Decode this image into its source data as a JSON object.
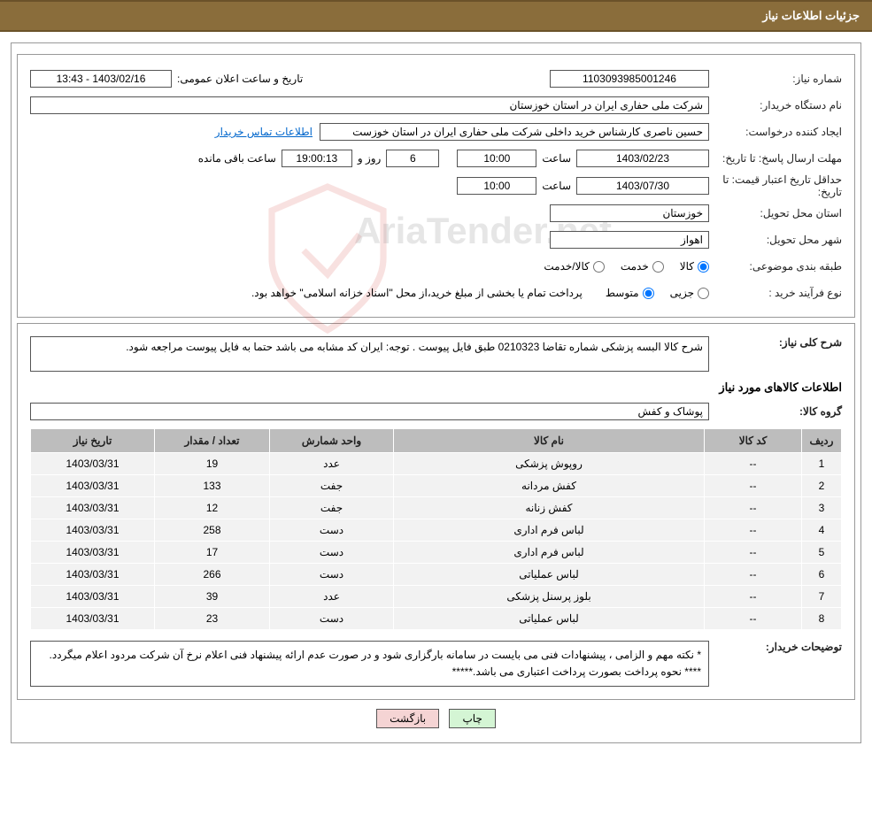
{
  "header": {
    "title": "جزئیات اطلاعات نیاز"
  },
  "need": {
    "number_label": "شماره نیاز:",
    "number": "1103093985001246",
    "announce_label": "تاریخ و ساعت اعلان عمومی:",
    "announce_datetime": "1403/02/16 - 13:43",
    "buyer_org_label": "نام دستگاه خریدار:",
    "buyer_org": "شرکت ملی حفاری ایران در استان خوزستان",
    "requester_label": "ایجاد کننده درخواست:",
    "requester": "حسین ناصری کارشناس خرید داخلی شرکت ملی حفاری ایران در استان خوزست",
    "buyer_contact_link": "اطلاعات تماس خریدار",
    "deadline_label": "مهلت ارسال پاسخ:",
    "deadline_to_label": "تا تاریخ:",
    "deadline_date": "1403/02/23",
    "time_label": "ساعت",
    "deadline_time": "10:00",
    "days_remaining": "6",
    "days_word": "روز و",
    "hms_remaining": "19:00:13",
    "remaining_suffix": "ساعت باقی مانده",
    "price_validity_label": "حداقل تاریخ اعتبار قیمت:",
    "price_validity_to_label": "تا تاریخ:",
    "price_validity_date": "1403/07/30",
    "price_validity_time": "10:00",
    "province_label": "استان محل تحویل:",
    "province": "خوزستان",
    "city_label": "شهر محل تحویل:",
    "city": "اهواز",
    "category_label": "طبقه بندی موضوعی:",
    "cat_goods": "کالا",
    "cat_service": "خدمت",
    "cat_goods_service": "کالا/خدمت",
    "process_label": "نوع فرآیند خرید :",
    "proc_partial": "جزیی",
    "proc_medium": "متوسط",
    "process_note": "پرداخت تمام یا بخشی از مبلغ خرید،از محل \"اسناد خزانه اسلامی\" خواهد بود."
  },
  "summary": {
    "need_desc_label": "شرح کلی نیاز:",
    "need_desc": "شرح کالا البسه پزشکی  شماره تقاضا 0210323  طبق فایل پیوست . توجه: ایران کد مشابه می باشد حتما به فایل پیوست مراجعه شود.",
    "items_heading": "اطلاعات کالاهای مورد نیاز",
    "group_label": "گروه کالا:",
    "group": "پوشاک و کفش"
  },
  "table": {
    "headers": {
      "row": "ردیف",
      "code": "کد کالا",
      "name": "نام کالا",
      "unit": "واحد شمارش",
      "qty": "تعداد / مقدار",
      "date": "تاریخ نیاز"
    },
    "rows": [
      {
        "n": "1",
        "code": "--",
        "name": "روپوش پزشکی",
        "unit": "عدد",
        "qty": "19",
        "date": "1403/03/31"
      },
      {
        "n": "2",
        "code": "--",
        "name": "کفش مردانه",
        "unit": "جفت",
        "qty": "133",
        "date": "1403/03/31"
      },
      {
        "n": "3",
        "code": "--",
        "name": "کفش زنانه",
        "unit": "جفت",
        "qty": "12",
        "date": "1403/03/31"
      },
      {
        "n": "4",
        "code": "--",
        "name": "لباس فرم اداری",
        "unit": "دست",
        "qty": "258",
        "date": "1403/03/31"
      },
      {
        "n": "5",
        "code": "--",
        "name": "لباس فرم اداری",
        "unit": "دست",
        "qty": "17",
        "date": "1403/03/31"
      },
      {
        "n": "6",
        "code": "--",
        "name": "لباس عملیاتی",
        "unit": "دست",
        "qty": "266",
        "date": "1403/03/31"
      },
      {
        "n": "7",
        "code": "--",
        "name": "بلوز پرسنل پزشکی",
        "unit": "عدد",
        "qty": "39",
        "date": "1403/03/31"
      },
      {
        "n": "8",
        "code": "--",
        "name": "لباس عملیاتی",
        "unit": "دست",
        "qty": "23",
        "date": "1403/03/31"
      }
    ]
  },
  "buyer_notes": {
    "label": "توضیحات خریدار:",
    "line1": "* نکته مهم و الزامی ، پیشنهادات فنی می بایست در سامانه بارگزاری شود و در صورت عدم ارائه پیشنهاد فنی اعلام نرخ آن شرکت مردود اعلام میگردد.",
    "line2": "****      نحوه پرداخت بصورت پرداخت اعتباری می باشد.*****"
  },
  "buttons": {
    "print": "چاپ",
    "back": "بازگشت"
  },
  "watermark": {
    "text": "AriaTender.net"
  },
  "style": {
    "header_bg": "#8a6d3b",
    "header_border": "#6b5229",
    "box_border": "#999999",
    "field_border": "#555555",
    "th_bg": "#bdbdbd",
    "td_bg": "#f2f2f2",
    "link_color": "#0066cc",
    "btn_print_bg": "#d4f5d4",
    "btn_back_bg": "#f5d4d4",
    "shield_stroke": "#d43f3a"
  }
}
